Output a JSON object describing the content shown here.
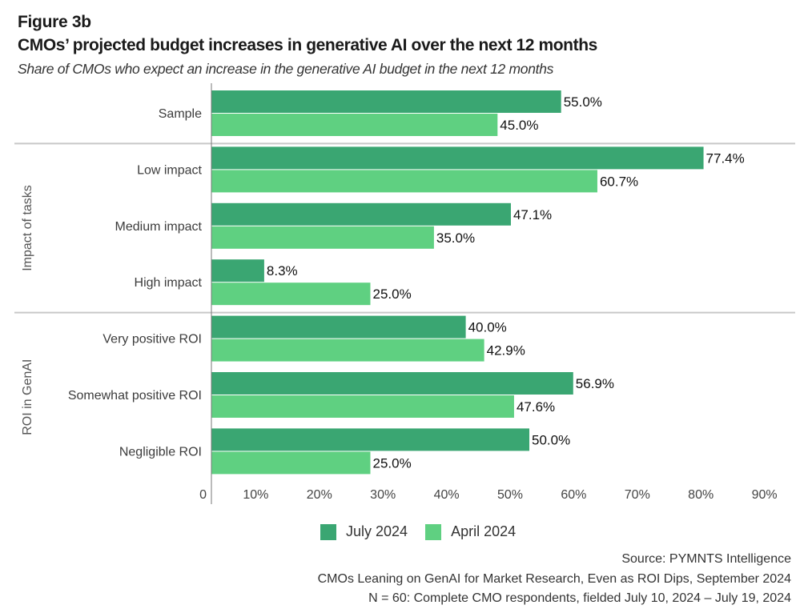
{
  "figure_label": "Figure 3b",
  "title": "CMOs’ projected budget increases in generative AI over the next 12 months",
  "subtitle": "Share of CMOs who expect an increase in the generative AI budget in the next 12 months",
  "colors": {
    "july": "#3aa672",
    "april": "#5fd081",
    "separator": "#c8c8c8",
    "axis": "#777777"
  },
  "chart_data": {
    "type": "bar",
    "orientation": "horizontal",
    "title": "CMOs’ projected budget increases in generative AI over the next 12 months",
    "subtitle": "Share of CMOs who expect an increase in the generative AI budget in the next 12 months",
    "categories": [
      "Sample",
      "Low impact",
      "Medium impact",
      "High impact",
      "Very positive ROI",
      "Somewhat positive ROI",
      "Negligible ROI"
    ],
    "groups": [
      {
        "name": "",
        "categories": [
          "Sample"
        ]
      },
      {
        "name": "Impact of tasks",
        "categories": [
          "Low impact",
          "Medium impact",
          "High impact"
        ]
      },
      {
        "name": "ROI in GenAI",
        "categories": [
          "Very positive ROI",
          "Somewhat positive ROI",
          "Negligible ROI"
        ]
      }
    ],
    "series": [
      {
        "name": "July 2024",
        "values": [
          55.0,
          77.4,
          47.1,
          8.3,
          40.0,
          56.9,
          50.0
        ],
        "labels": [
          "55.0%",
          "77.4%",
          "47.1%",
          "8.3%",
          "40.0%",
          "56.9%",
          "50.0%"
        ]
      },
      {
        "name": "April 2024",
        "values": [
          45.0,
          60.7,
          35.0,
          25.0,
          42.9,
          47.6,
          25.0
        ],
        "labels": [
          "45.0%",
          "60.7%",
          "35.0%",
          "25.0%",
          "42.9%",
          "47.6%",
          "25.0%"
        ]
      }
    ],
    "xlim": [
      0,
      90
    ],
    "xticks": [
      0,
      10,
      20,
      30,
      40,
      50,
      60,
      70,
      80,
      90
    ],
    "xtick_labels": [
      "0",
      "10%",
      "20%",
      "30%",
      "40%",
      "50%",
      "60%",
      "70%",
      "80%",
      "90%"
    ],
    "xlabel": "",
    "ylabel": "",
    "grid": false,
    "legend_position": "bottom"
  },
  "legend": [
    {
      "label": "July 2024",
      "key": "july"
    },
    {
      "label": "April 2024",
      "key": "april"
    }
  ],
  "source": {
    "line1": "Source: PYMNTS Intelligence",
    "line2": "CMOs Leaning on GenAI for Market Research, Even as ROI Dips, September 2024",
    "line3": "N = 60: Complete CMO respondents, fielded July 10, 2024 – July 19, 2024"
  }
}
